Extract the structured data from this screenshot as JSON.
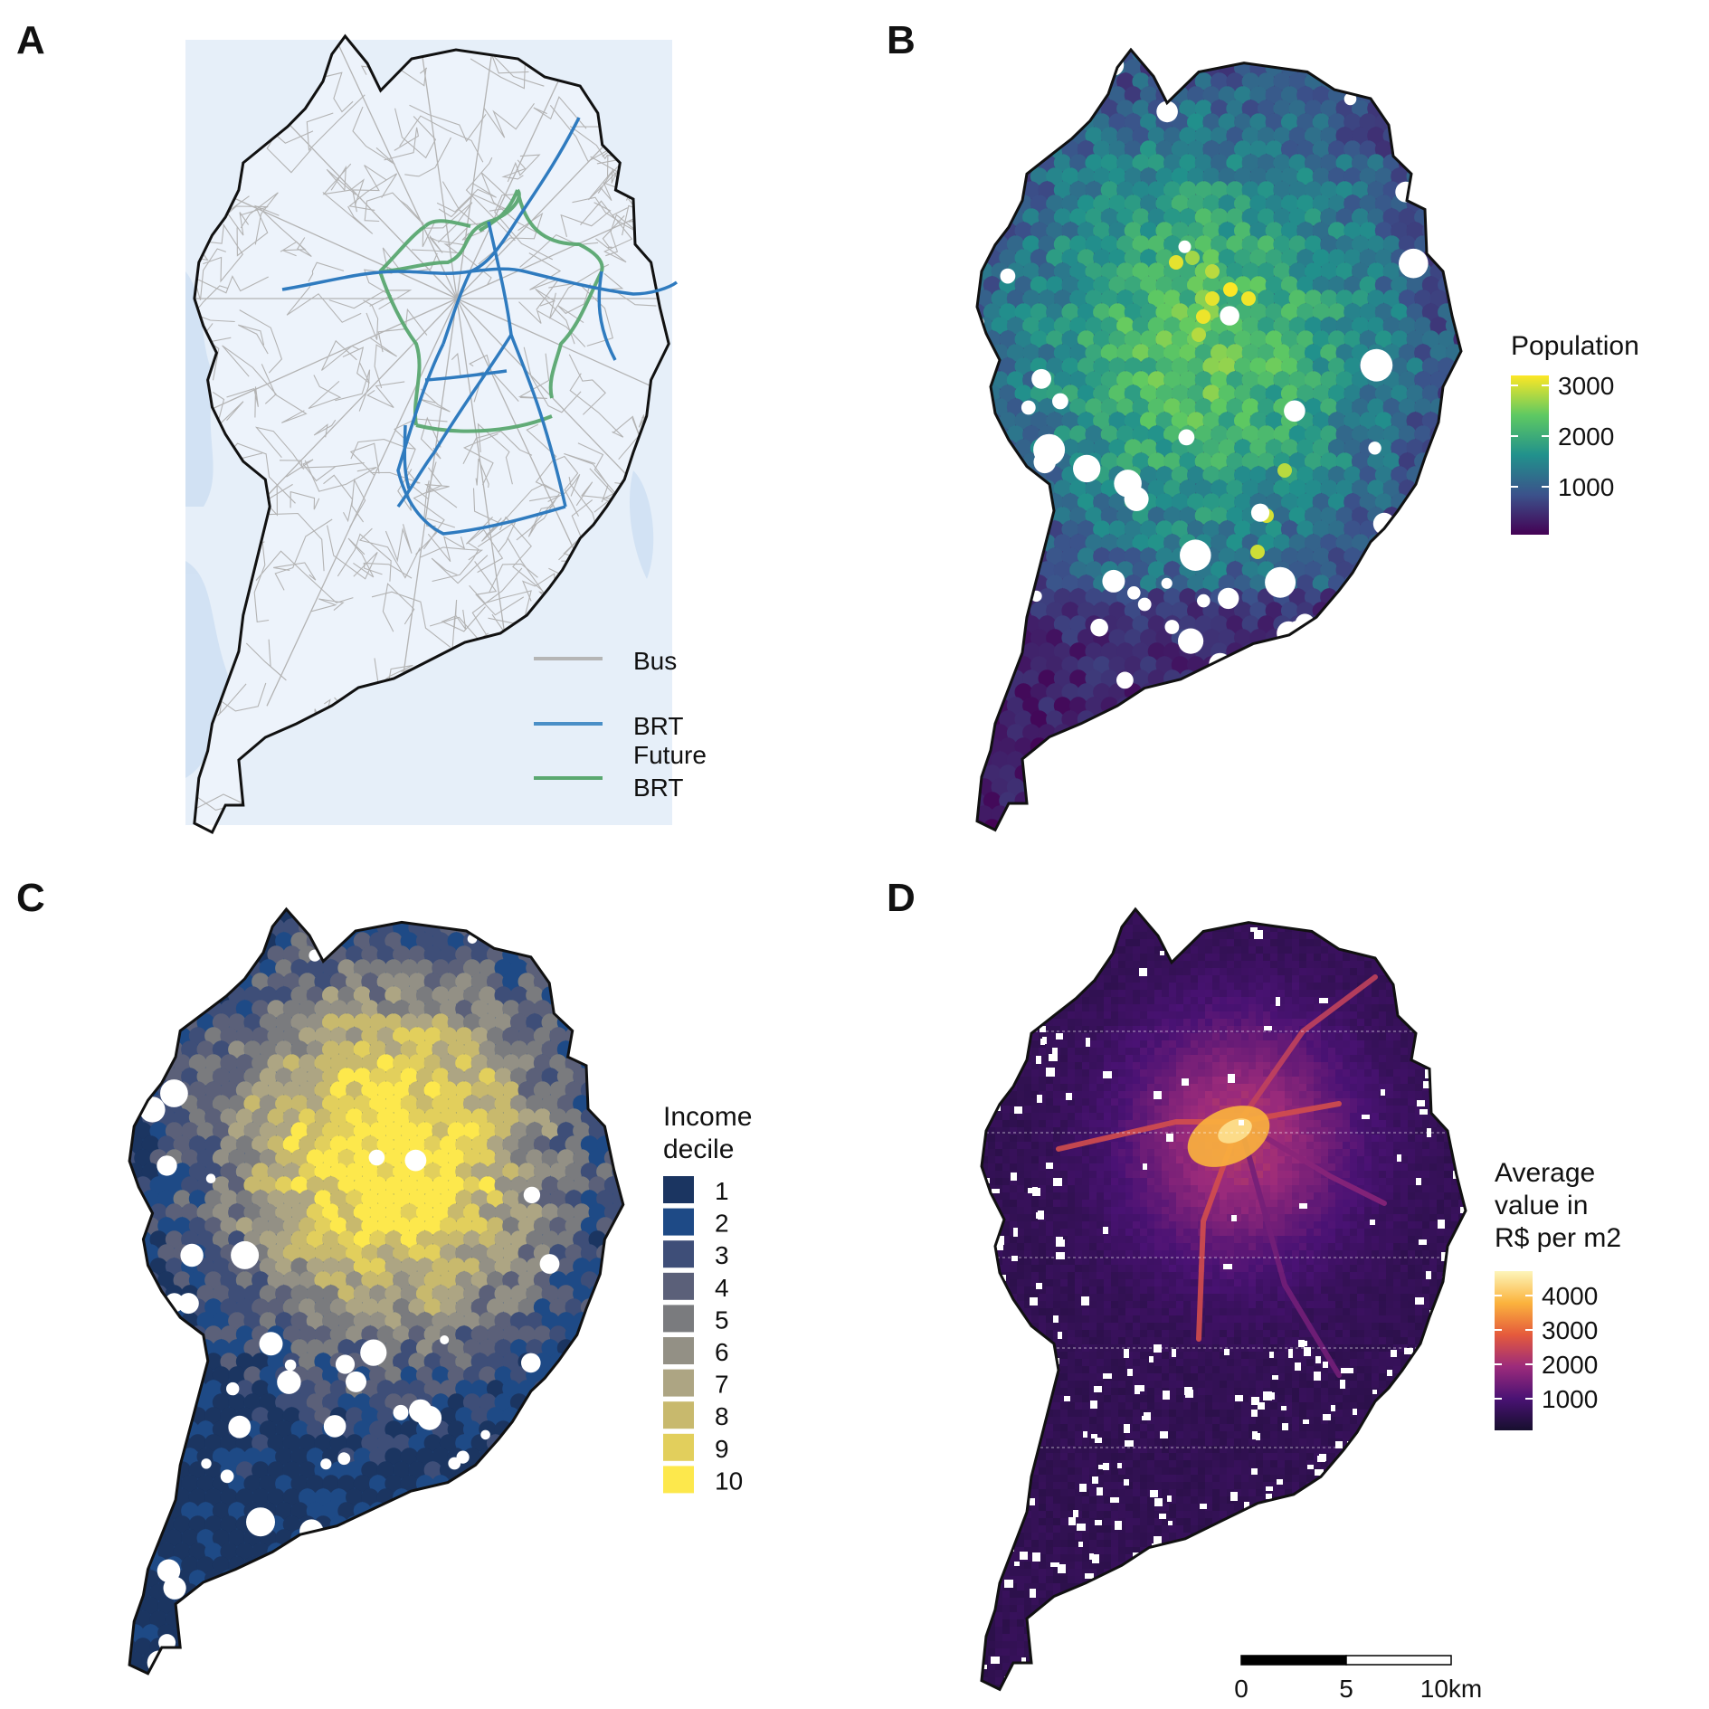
{
  "panels": {
    "A": {
      "letter": "A",
      "legend": [
        {
          "label_lines": [
            "Bus"
          ],
          "color": "#b5b5b5"
        },
        {
          "label_lines": [
            "BRT"
          ],
          "color": "#4a8fc7"
        },
        {
          "label_lines": [
            "Future",
            "BRT"
          ],
          "color": "#5aa870"
        }
      ]
    },
    "B": {
      "letter": "B",
      "legend_title": [
        "Population"
      ],
      "ticks": [
        "3000",
        "2000",
        "1000"
      ],
      "colors": [
        "#440154",
        "#3b528b",
        "#21918c",
        "#5ec962",
        "#fde725"
      ]
    },
    "C": {
      "letter": "C",
      "legend_title": [
        "Income",
        "decile"
      ],
      "deciles": [
        "1",
        "2",
        "3",
        "4",
        "5",
        "6",
        "7",
        "8",
        "9",
        "10"
      ],
      "colors": [
        "#1b3561",
        "#1e4a86",
        "#3e4e78",
        "#5b6079",
        "#7a7b7e",
        "#939085",
        "#ada583",
        "#c8b96d",
        "#e2cf5c",
        "#fde84c"
      ]
    },
    "D": {
      "letter": "D",
      "legend_title": [
        "Average",
        "value in",
        "R$ per m2"
      ],
      "ticks": [
        "4000",
        "3000",
        "2000",
        "1000"
      ],
      "colors": [
        "#170f2e",
        "#4a1274",
        "#9c2b7b",
        "#e55a3c",
        "#fbb33d",
        "#fdf5ba"
      ],
      "scalebar": [
        "0",
        "5",
        "10km"
      ]
    }
  }
}
